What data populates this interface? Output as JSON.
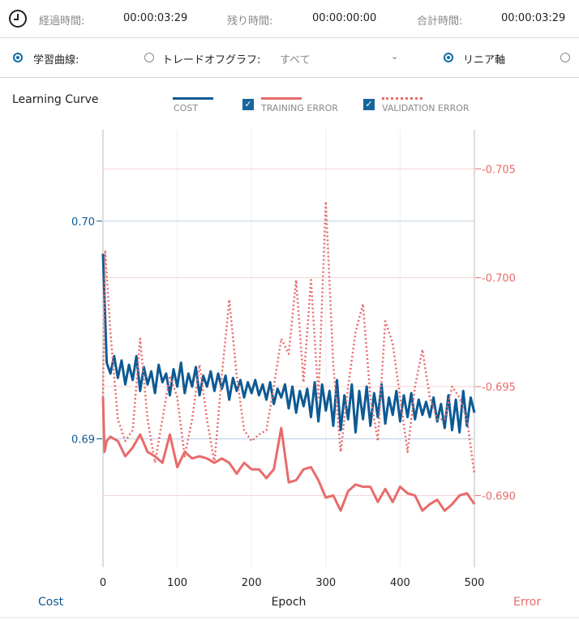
{
  "timer": {
    "icon": "clock-icon",
    "elapsed_label": "経過時間:",
    "elapsed": "00:00:03:29",
    "remaining_label": "残り時間:",
    "remaining": "00:00:00:00",
    "total_label": "合計時間:",
    "total": "00:00:03:29"
  },
  "options": {
    "learning_curve": "学習曲線:",
    "tradeoff": "トレードオフグラフ:",
    "dropdown_value": "すべて",
    "linear_axis": "リニア軸",
    "learning_curve_selected": true,
    "tradeoff_selected": false,
    "linear_selected": true,
    "other_selected": false
  },
  "legend": {
    "title": "Learning Curve",
    "cost": "COST",
    "training": "TRAINING ERROR",
    "validation": "VALIDATION ERROR",
    "training_checked": true,
    "validation_checked": true
  },
  "colors": {
    "cost": "#0d5a94",
    "error": "#e86b6b"
  },
  "chart_data": {
    "type": "line",
    "title": "Learning Curve",
    "xlabel": "Epoch",
    "ylabel_left": "Cost",
    "ylabel_right": "Error",
    "xlim": [
      0,
      500
    ],
    "xticks": [
      "0",
      "100",
      "200",
      "300",
      "400",
      "500"
    ],
    "ylim_left": [
      0.6841,
      0.7042
    ],
    "yticks_left": [
      "0.69",
      "0.70"
    ],
    "ylim_right": [
      0.6867,
      0.7068
    ],
    "yticks_right": [
      "0.690",
      "0.695",
      "0.700",
      "0.705"
    ],
    "grid": true,
    "series": [
      {
        "name": "COST",
        "axis": "left",
        "x": [
          0,
          5,
          10,
          15,
          20,
          25,
          30,
          35,
          40,
          45,
          50,
          55,
          60,
          65,
          70,
          75,
          80,
          85,
          90,
          95,
          100,
          105,
          110,
          115,
          120,
          125,
          130,
          135,
          140,
          145,
          150,
          155,
          160,
          165,
          170,
          175,
          180,
          185,
          190,
          195,
          200,
          205,
          210,
          215,
          220,
          225,
          230,
          235,
          240,
          245,
          250,
          255,
          260,
          265,
          270,
          275,
          280,
          285,
          290,
          295,
          300,
          305,
          310,
          315,
          320,
          325,
          330,
          335,
          340,
          345,
          350,
          355,
          360,
          365,
          370,
          375,
          380,
          385,
          390,
          395,
          400,
          405,
          410,
          415,
          420,
          425,
          430,
          435,
          440,
          445,
          450,
          455,
          460,
          465,
          470,
          475,
          480,
          485,
          490,
          495,
          500
        ],
        "values": [
          0.6985,
          0.6935,
          0.693,
          0.6938,
          0.6928,
          0.6936,
          0.6925,
          0.6934,
          0.6927,
          0.6938,
          0.6922,
          0.6933,
          0.6925,
          0.6931,
          0.6921,
          0.6934,
          0.6926,
          0.693,
          0.692,
          0.6932,
          0.6924,
          0.6935,
          0.6921,
          0.693,
          0.6924,
          0.6933,
          0.692,
          0.6929,
          0.6924,
          0.6931,
          0.6922,
          0.693,
          0.6923,
          0.6929,
          0.6918,
          0.6928,
          0.6922,
          0.6927,
          0.6919,
          0.6926,
          0.6921,
          0.6927,
          0.692,
          0.6925,
          0.6918,
          0.6926,
          0.6916,
          0.6923,
          0.6919,
          0.6925,
          0.6914,
          0.6924,
          0.6912,
          0.6922,
          0.6915,
          0.6923,
          0.691,
          0.6926,
          0.6908,
          0.6925,
          0.6913,
          0.6922,
          0.6906,
          0.6927,
          0.6904,
          0.692,
          0.6909,
          0.6925,
          0.6903,
          0.6922,
          0.6909,
          0.6924,
          0.6906,
          0.6921,
          0.691,
          0.6925,
          0.6907,
          0.6919,
          0.6911,
          0.6922,
          0.6908,
          0.692,
          0.691,
          0.6921,
          0.6909,
          0.6918,
          0.6911,
          0.6917,
          0.691,
          0.6919,
          0.6908,
          0.6916,
          0.6905,
          0.692,
          0.6904,
          0.6918,
          0.6903,
          0.6922,
          0.6906,
          0.6919,
          0.6912
        ]
      },
      {
        "name": "TRAINING ERROR",
        "axis": "right",
        "x": [
          0,
          2,
          5,
          10,
          20,
          30,
          40,
          50,
          60,
          70,
          80,
          90,
          100,
          110,
          120,
          130,
          140,
          150,
          160,
          170,
          180,
          190,
          200,
          210,
          220,
          230,
          240,
          250,
          260,
          270,
          280,
          290,
          300,
          310,
          320,
          330,
          340,
          350,
          360,
          370,
          380,
          390,
          400,
          410,
          420,
          430,
          440,
          450,
          460,
          470,
          480,
          490,
          500
        ],
        "values": [
          0.6945,
          0.692,
          0.6925,
          0.6927,
          0.6925,
          0.6918,
          0.6922,
          0.6928,
          0.692,
          0.6918,
          0.6915,
          0.6928,
          0.6913,
          0.692,
          0.6917,
          0.6918,
          0.6917,
          0.6915,
          0.6917,
          0.6915,
          0.691,
          0.6915,
          0.6912,
          0.6912,
          0.6908,
          0.6912,
          0.6931,
          0.6906,
          0.6907,
          0.6912,
          0.6913,
          0.6907,
          0.6899,
          0.69,
          0.6893,
          0.6902,
          0.6905,
          0.6904,
          0.6904,
          0.6897,
          0.6903,
          0.6897,
          0.6904,
          0.6901,
          0.69,
          0.6893,
          0.6896,
          0.6898,
          0.6893,
          0.6896,
          0.69,
          0.6901,
          0.6896
        ]
      },
      {
        "name": "VALIDATION ERROR",
        "axis": "right",
        "style": "dotted",
        "x": [
          0,
          3,
          10,
          20,
          30,
          40,
          50,
          60,
          70,
          80,
          90,
          100,
          110,
          120,
          130,
          140,
          150,
          160,
          170,
          180,
          190,
          200,
          210,
          220,
          230,
          240,
          250,
          260,
          270,
          280,
          290,
          300,
          310,
          320,
          330,
          340,
          350,
          360,
          370,
          380,
          390,
          400,
          410,
          420,
          430,
          440,
          450,
          460,
          470,
          480,
          490,
          500
        ],
        "values": [
          0.6945,
          0.7012,
          0.6975,
          0.6935,
          0.6925,
          0.693,
          0.6972,
          0.6935,
          0.6915,
          0.6935,
          0.6955,
          0.6945,
          0.6918,
          0.6935,
          0.696,
          0.6935,
          0.6915,
          0.6955,
          0.699,
          0.6955,
          0.693,
          0.6925,
          0.6928,
          0.693,
          0.695,
          0.6972,
          0.6965,
          0.6999,
          0.6952,
          0.6999,
          0.6945,
          0.7035,
          0.696,
          0.692,
          0.695,
          0.6975,
          0.6988,
          0.6945,
          0.6925,
          0.698,
          0.697,
          0.6945,
          0.692,
          0.695,
          0.6967,
          0.6945,
          0.6935,
          0.6935,
          0.695,
          0.6945,
          0.6935,
          0.691
        ]
      }
    ]
  }
}
